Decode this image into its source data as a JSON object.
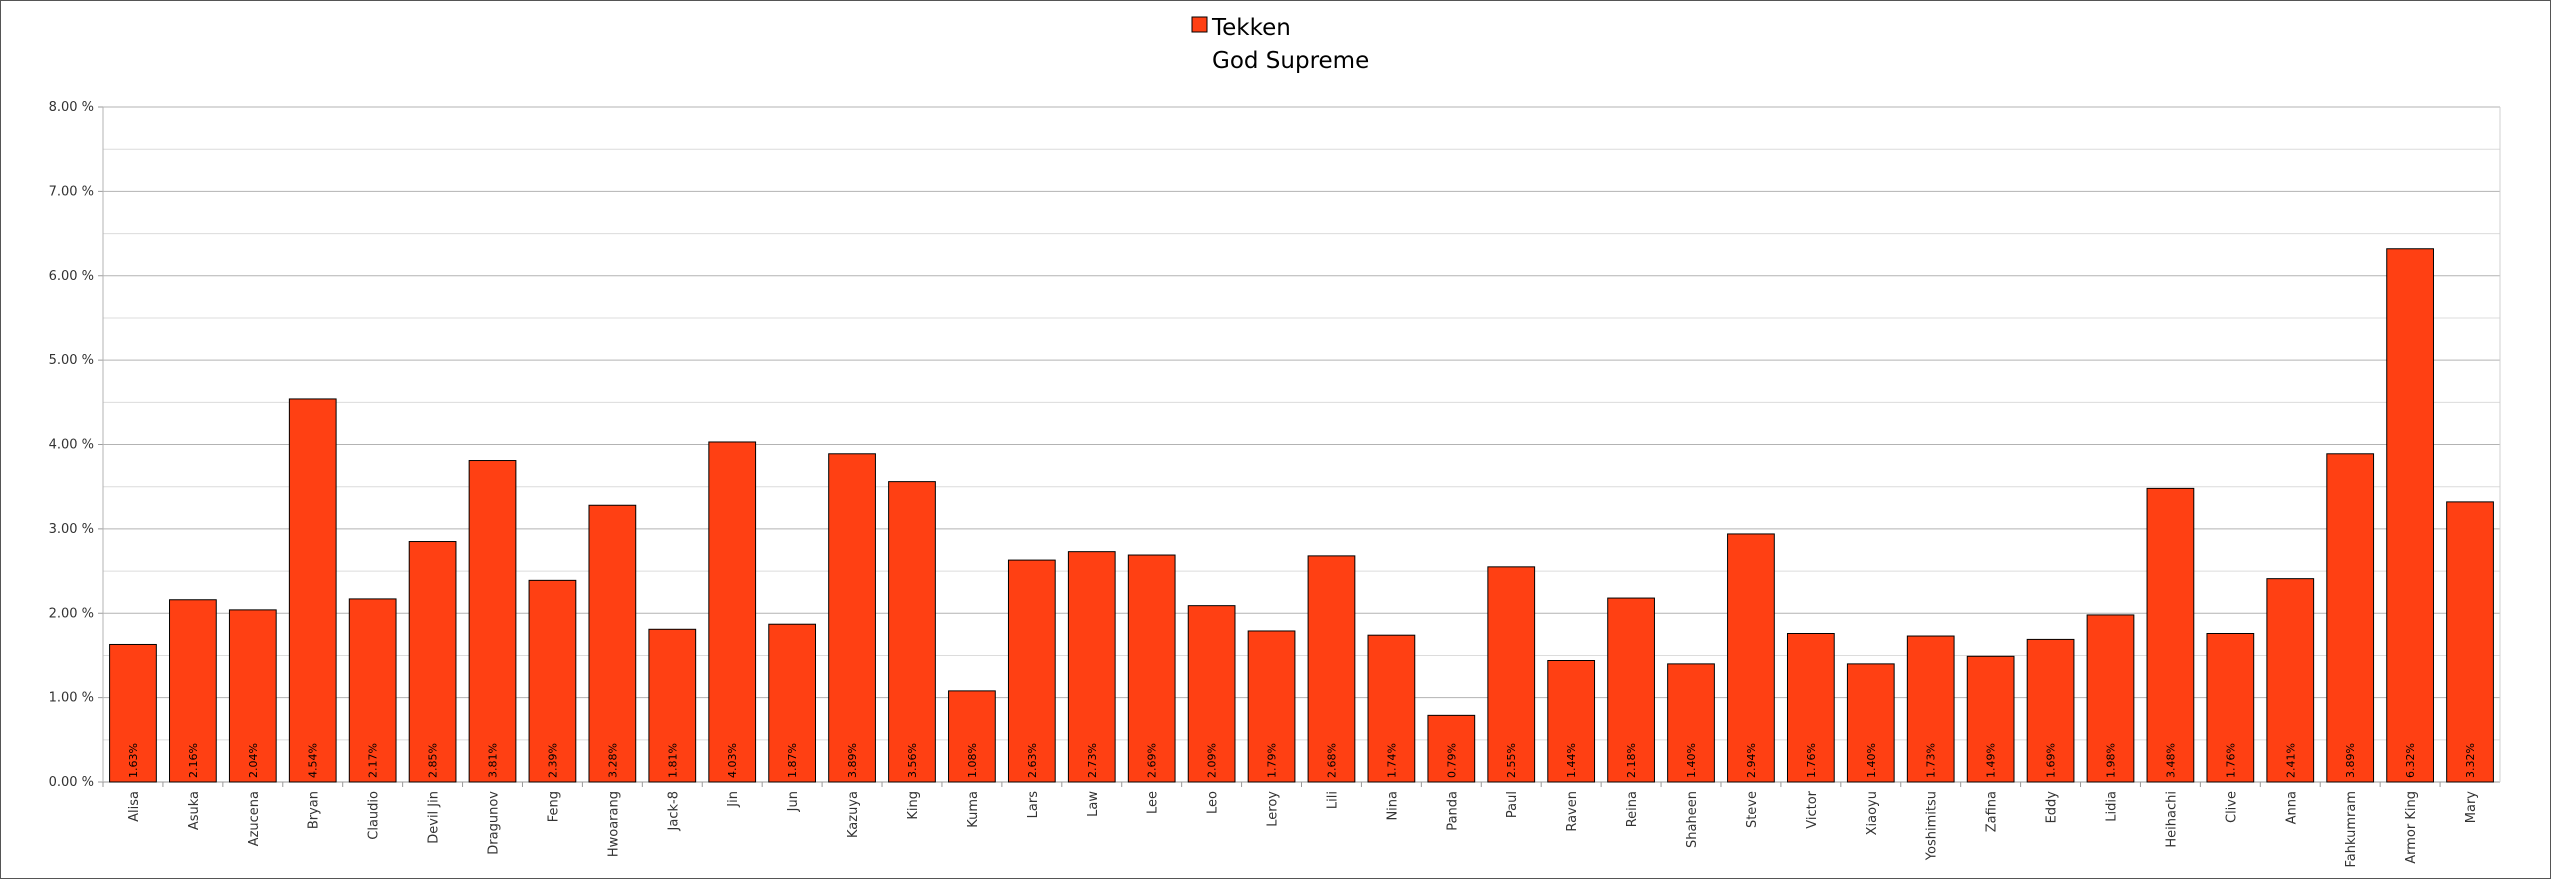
{
  "chart_data": {
    "type": "bar",
    "title": "",
    "xlabel": "",
    "ylabel": "",
    "ylim": [
      0,
      8
    ],
    "y_ticks": [
      "0.00 %",
      "1.00 %",
      "2.00 %",
      "3.00 %",
      "4.00 %",
      "5.00 %",
      "6.00 %",
      "7.00 %",
      "8.00 %"
    ],
    "grid": true,
    "legend_position": "top-center",
    "legend_lines": [
      "Tekken",
      "God Supreme"
    ],
    "bar_color": "#ff4013",
    "categories": [
      "Alisa",
      "Asuka",
      "Azucena",
      "Bryan",
      "Claudio",
      "Devil Jin",
      "Dragunov",
      "Feng",
      "Hwoarang",
      "Jack-8",
      "Jin",
      "Jun",
      "Kazuya",
      "King",
      "Kuma",
      "Lars",
      "Law",
      "Lee",
      "Leo",
      "Leroy",
      "Lili",
      "Nina",
      "Panda",
      "Paul",
      "Raven",
      "Reina",
      "Shaheen",
      "Steve",
      "Victor",
      "Xiaoyu",
      "Yoshimitsu",
      "Zafina",
      "Eddy",
      "Lidia",
      "Heihachi",
      "Clive",
      "Anna",
      "Fahkumram",
      "Armor King",
      "Mary"
    ],
    "series": [
      {
        "name": "Tekken",
        "values": [
          1.63,
          2.16,
          2.04,
          4.54,
          2.17,
          2.85,
          3.81,
          2.39,
          3.28,
          1.81,
          4.03,
          1.87,
          3.89,
          3.56,
          1.08,
          2.63,
          2.73,
          2.69,
          2.09,
          1.79,
          2.68,
          1.74,
          0.79,
          2.55,
          1.44,
          2.18,
          1.4,
          2.94,
          1.76,
          1.4,
          1.73,
          1.49,
          1.69,
          1.98,
          3.48,
          1.76,
          2.41,
          3.89,
          6.32,
          3.32
        ],
        "labels": [
          "1.63%",
          "2.16%",
          "2.04%",
          "4.54%",
          "2.17%",
          "2.85%",
          "3.81%",
          "2.39%",
          "3.28%",
          "1.81%",
          "4.03%",
          "1.87%",
          "3.89%",
          "3.56%",
          "1.08%",
          "2.63%",
          "2.73%",
          "2.69%",
          "2.09%",
          "1.79%",
          "2.68%",
          "1.74%",
          "0.79%",
          "2.55%",
          "1.44%",
          "2.18%",
          "1.40%",
          "2.94%",
          "1.76%",
          "1.40%",
          "1.73%",
          "1.49%",
          "1.69%",
          "1.98%",
          "3.48%",
          "1.76%",
          "2.41%",
          "3.89%",
          "6.32%",
          "3.32%"
        ]
      }
    ]
  }
}
